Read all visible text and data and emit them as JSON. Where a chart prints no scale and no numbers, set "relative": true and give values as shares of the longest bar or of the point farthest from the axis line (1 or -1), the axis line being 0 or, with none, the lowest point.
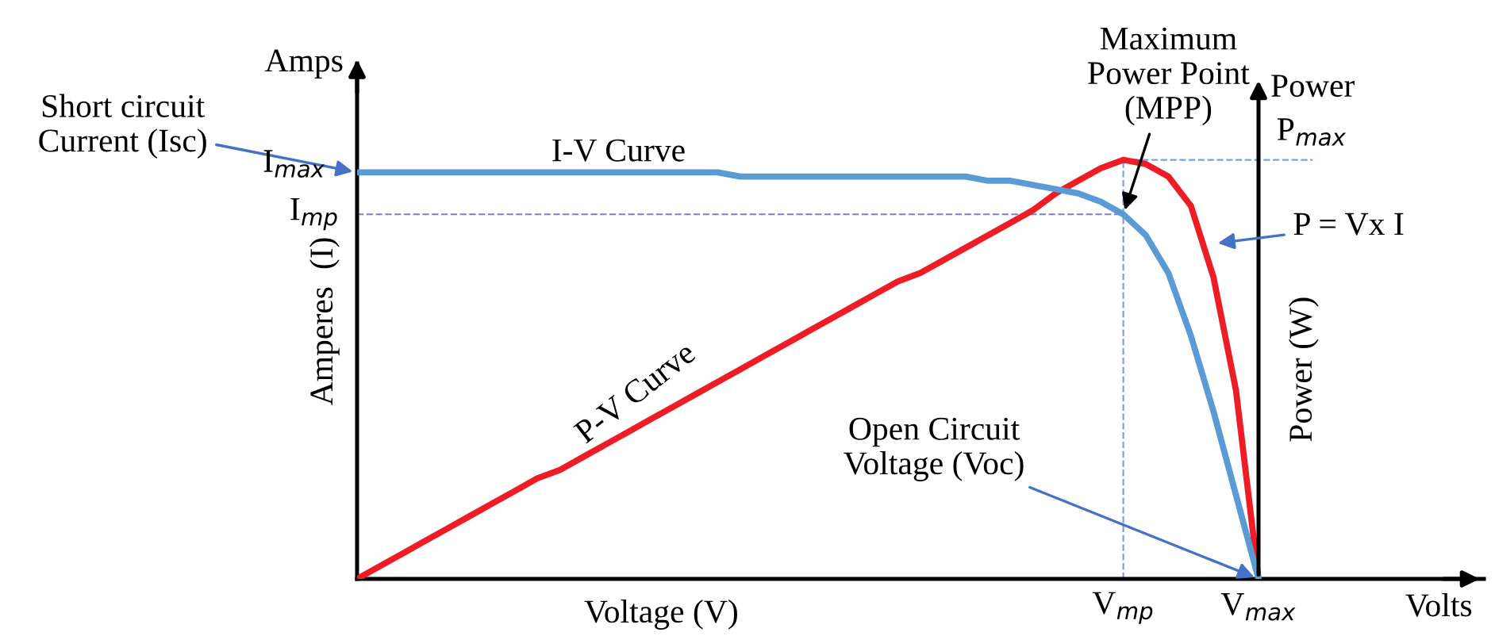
{
  "chart_data": {
    "type": "line",
    "relative": true,
    "xlabel": "Voltage (V)",
    "ylabel": "Amperes  (I)",
    "y2label": "Power (W)",
    "categories": [
      null,
      null,
      null,
      null,
      null,
      null,
      null,
      null,
      null,
      null,
      null,
      null,
      null,
      null,
      null,
      null,
      null,
      null,
      null,
      null,
      null,
      null,
      null,
      null,
      null,
      null,
      null,
      null,
      null,
      null,
      null,
      null,
      null,
      null,
      "V$_{mp}$",
      null,
      null,
      null,
      null,
      null,
      "V$_{max}$"
    ],
    "series": [
      {
        "name": "P-V Curve",
        "color": "#ee1c24",
        "values": [
          0,
          0.03,
          0.06,
          0.09,
          0.12,
          0.15,
          0.18,
          0.21,
          0.24,
          0.26,
          0.29,
          0.32,
          0.35,
          0.38,
          0.41,
          0.44,
          0.47,
          0.5,
          0.53,
          0.56,
          0.59,
          0.62,
          0.65,
          0.68,
          0.71,
          0.73,
          0.76,
          0.79,
          0.82,
          0.85,
          0.88,
          0.92,
          0.95,
          0.98,
          1.0,
          0.99,
          0.96,
          0.89,
          0.72,
          0.45,
          0
        ]
      },
      {
        "name": "I-V Curve",
        "color": "#5b9bd5",
        "values": [
          0.97,
          0.97,
          0.97,
          0.97,
          0.97,
          0.97,
          0.97,
          0.97,
          0.97,
          0.97,
          0.97,
          0.97,
          0.97,
          0.97,
          0.97,
          0.97,
          0.97,
          0.96,
          0.96,
          0.96,
          0.96,
          0.96,
          0.96,
          0.96,
          0.96,
          0.96,
          0.96,
          0.96,
          0.95,
          0.95,
          0.94,
          0.93,
          0.92,
          0.9,
          0.87,
          0.82,
          0.73,
          0.58,
          0.4,
          0.2,
          0
        ]
      }
    ],
    "ref_lines": [
      {
        "axis": "y",
        "value": 0.87,
        "label": "I$_{mp}$",
        "color": "#7f7fbf",
        "line_style": "dashed"
      },
      {
        "axis": "y",
        "value": 1.0,
        "label": "P$_{max}$",
        "color": "#7f9fdf",
        "line_style": "dashed"
      },
      {
        "axis": "x",
        "value": "V$_{mp}$",
        "color": "#7f9fdf",
        "line_style": "dashed"
      }
    ],
    "annotations": [
      "Short circuit\nCurrent (Isc)",
      {
        "text": "Maximum\nPower Point\n(MPP)",
        "x": "V$_{mp}$",
        "y": 0.87
      },
      "P = Vx I",
      {
        "text": "Open Circuit\nVoltage (Voc)",
        "x": "V$_{max}$",
        "y": 0
      },
      "I$_{max}$",
      "Amps",
      "Power",
      "Volts"
    ],
    "grid": false,
    "marker": "none",
    "line_style": "solid"
  }
}
